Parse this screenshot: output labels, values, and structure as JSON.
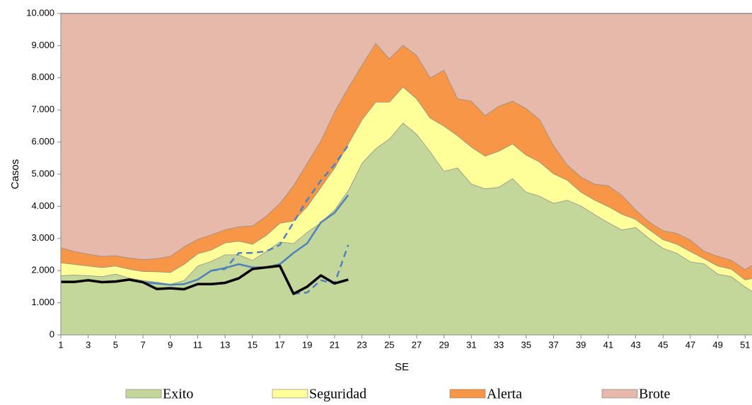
{
  "chart_data": {
    "type": "area",
    "stacked": true,
    "xlabel": "SE",
    "ylabel": "Casos",
    "x": [
      1,
      2,
      3,
      4,
      5,
      6,
      7,
      8,
      9,
      10,
      11,
      12,
      13,
      14,
      15,
      16,
      17,
      18,
      19,
      20,
      21,
      22,
      23,
      24,
      25,
      26,
      27,
      28,
      29,
      30,
      31,
      32,
      33,
      34,
      35,
      36,
      37,
      38,
      39,
      40,
      41,
      42,
      43,
      44,
      45,
      46,
      47,
      48,
      49,
      50,
      51,
      52
    ],
    "xlim": [
      1,
      51.5
    ],
    "xticks": [
      1,
      3,
      5,
      7,
      9,
      11,
      13,
      15,
      17,
      19,
      21,
      23,
      25,
      27,
      29,
      31,
      33,
      35,
      37,
      39,
      41,
      43,
      45,
      47,
      49,
      51
    ],
    "ylim": [
      0,
      10000
    ],
    "yticks": [
      0,
      {
        "value": 1000,
        "label": "1.000"
      },
      {
        "value": 2000,
        "label": "2.000"
      },
      {
        "value": 3000,
        "label": "3.000"
      },
      {
        "value": 4000,
        "label": "4.000"
      },
      {
        "value": 5000,
        "label": "5.000"
      },
      {
        "value": 6000,
        "label": "6.000"
      },
      {
        "value": 7000,
        "label": "7.000"
      },
      {
        "value": 8000,
        "label": "8.000"
      },
      {
        "value": 9000,
        "label": "9.000"
      },
      {
        "value": 10000,
        "label": "10.000"
      }
    ],
    "series": [
      {
        "name": "Exito",
        "color": "#c4d79b",
        "kind": "area",
        "values": [
          1850,
          1870,
          1850,
          1820,
          1900,
          1780,
          1700,
          1650,
          1580,
          1700,
          2150,
          2300,
          2500,
          2500,
          2330,
          2600,
          2900,
          2850,
          3200,
          3500,
          3900,
          4500,
          5350,
          5800,
          6100,
          6600,
          6250,
          5700,
          5100,
          5200,
          4700,
          4550,
          4600,
          4870,
          4450,
          4320,
          4100,
          4200,
          4020,
          3750,
          3500,
          3270,
          3350,
          3000,
          2700,
          2550,
          2280,
          2220,
          1900,
          1820,
          1500,
          1230
        ]
      },
      {
        "name": "Seguridad",
        "color": "#ffff99",
        "kind": "area",
        "values": [
          400,
          330,
          300,
          280,
          250,
          270,
          280,
          320,
          370,
          500,
          380,
          350,
          370,
          420,
          500,
          500,
          580,
          700,
          800,
          1100,
          1300,
          1450,
          1350,
          1450,
          1150,
          1120,
          1100,
          1050,
          1400,
          1000,
          1150,
          1020,
          1120,
          1080,
          1150,
          1060,
          920,
          620,
          430,
          450,
          500,
          490,
          250,
          280,
          270,
          280,
          320,
          160,
          250,
          230,
          220,
          570
        ]
      },
      {
        "name": "Alerta",
        "color": "#f79646",
        "kind": "area",
        "values": [
          470,
          400,
          370,
          350,
          320,
          350,
          370,
          410,
          500,
          550,
          450,
          470,
          410,
          450,
          570,
          600,
          620,
          1100,
          1350,
          1450,
          1750,
          1750,
          1700,
          1830,
          1350,
          1300,
          1350,
          1250,
          1750,
          1150,
          1430,
          1260,
          1400,
          1330,
          1450,
          1320,
          880,
          480,
          470,
          500,
          650,
          590,
          300,
          240,
          280,
          340,
          360,
          230,
          300,
          280,
          320,
          500
        ]
      },
      {
        "name": "Brote",
        "color": "#e6b9ab",
        "kind": "area",
        "values": [
          7280,
          7400,
          7480,
          7550,
          7530,
          7600,
          7650,
          7620,
          7550,
          7250,
          7020,
          6880,
          6720,
          6630,
          6600,
          6300,
          5900,
          5350,
          4650,
          3950,
          3050,
          2300,
          1600,
          920,
          1400,
          980,
          1300,
          2000,
          1750,
          2650,
          2720,
          3170,
          2880,
          2720,
          2950,
          3300,
          4100,
          4700,
          5080,
          5300,
          5350,
          5650,
          6100,
          6480,
          6750,
          6830,
          7040,
          7390,
          7550,
          7670,
          7960,
          7700
        ]
      },
      {
        "color": "#4f81bd",
        "kind": "line",
        "style": "solid",
        "values": [
          1650,
          1650,
          1700,
          1640,
          1660,
          1720,
          1640,
          1600,
          1560,
          1580,
          1720,
          2000,
          2080,
          2200,
          2100,
          2100,
          2200,
          2550,
          2850,
          3500,
          3800,
          4350,
          null,
          null,
          null,
          null,
          null,
          null,
          null,
          null,
          null,
          null,
          null,
          null,
          null,
          null,
          null,
          null,
          null,
          null,
          null,
          null,
          null,
          null,
          null,
          null,
          null,
          null,
          null,
          null,
          null,
          null
        ]
      },
      {
        "color": "#4f81bd",
        "kind": "line",
        "style": "dashed",
        "values": [
          null,
          null,
          null,
          null,
          null,
          null,
          null,
          null,
          null,
          null,
          null,
          2000,
          2050,
          2550,
          2550,
          2600,
          2800,
          3500,
          4200,
          4800,
          5300,
          5900,
          null,
          null,
          null,
          null,
          null,
          null,
          null,
          null,
          null,
          null,
          null,
          null,
          null,
          null,
          null,
          null,
          null,
          null,
          null,
          null,
          null,
          null,
          null,
          null,
          null,
          null,
          null,
          null,
          null,
          null
        ]
      },
      {
        "color": "#4f81bd",
        "kind": "line",
        "style": "dashed",
        "values": [
          null,
          null,
          null,
          null,
          null,
          null,
          null,
          null,
          null,
          null,
          null,
          null,
          null,
          null,
          null,
          null,
          null,
          1280,
          1320,
          1700,
          1600,
          2800,
          null,
          null,
          null,
          null,
          null,
          null,
          null,
          null,
          null,
          null,
          null,
          null,
          null,
          null,
          null,
          null,
          null,
          null,
          null,
          null,
          null,
          null,
          null,
          null,
          null,
          null,
          null,
          null,
          null,
          null
        ]
      },
      {
        "color": "#000000",
        "kind": "line",
        "style": "bold",
        "values": [
          1650,
          1650,
          1700,
          1640,
          1660,
          1720,
          1640,
          1430,
          1450,
          1420,
          1580,
          1580,
          1620,
          1760,
          2050,
          2100,
          2150,
          1280,
          1500,
          1850,
          1600,
          1720,
          null,
          null,
          null,
          null,
          null,
          null,
          null,
          null,
          null,
          null,
          null,
          null,
          null,
          null,
          null,
          null,
          null,
          null,
          null,
          null,
          null,
          null,
          null,
          null,
          null,
          null,
          null,
          null,
          null,
          null
        ]
      }
    ]
  }
}
